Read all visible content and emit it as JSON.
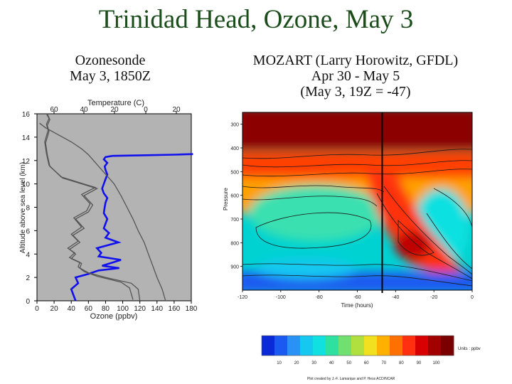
{
  "slide": {
    "title": "Trinidad Head, Ozone, May 3",
    "left_subtitle": [
      "Ozonesonde",
      "May 3, 1850Z"
    ],
    "right_subtitle": [
      "MOZART (Larry Horowitz, GFDL)",
      "Apr 30 - May 5",
      "(May 3, 19Z = -47)"
    ]
  },
  "colors": {
    "ozone_profile": "#1111ee",
    "sonde_panel_bg": "#b3b3b3",
    "trace_gray": "#555555",
    "contour_top": "#8c0000",
    "contour_mid": "#00d2d2"
  },
  "chart_data": [
    {
      "type": "line",
      "ylabel": "Altitude above sea level (km)",
      "ylim": [
        0,
        16
      ],
      "yticks": [
        "0",
        "2",
        "4",
        "6",
        "8",
        "10",
        "12",
        "14",
        "16"
      ],
      "x_top_label": "Temperature (C)",
      "x_top_ticks": [
        "60",
        "40",
        "20",
        "0",
        "20"
      ],
      "x_bottom_label": "Ozone (ppbv)",
      "x_bottom_ticks": [
        "0",
        "20",
        "40",
        "60",
        "80",
        "100",
        "120",
        "140",
        "160",
        "180"
      ],
      "xlim": [
        0,
        180
      ],
      "series": [
        {
          "key": "ozone",
          "x": [
            45,
            42,
            40,
            48,
            45,
            60,
            72,
            96,
            76,
            98,
            72,
            75,
            70,
            95,
            80,
            84,
            78,
            80,
            82,
            78,
            79,
            80,
            82,
            78,
            76,
            78,
            80,
            82,
            80,
            79,
            82,
            78,
            80,
            88,
            122,
            160,
            182
          ],
          "y": [
            0,
            0.6,
            1.0,
            1.5,
            2.0,
            2.3,
            2.6,
            2.8,
            3.0,
            3.5,
            3.8,
            4.1,
            4.5,
            5.0,
            5.4,
            5.8,
            6.2,
            6.6,
            7.0,
            7.5,
            8.0,
            8.4,
            8.8,
            9.2,
            9.6,
            10.0,
            10.4,
            10.8,
            11.2,
            11.5,
            11.8,
            12.1,
            12.3,
            12.4,
            12.45,
            12.5,
            12.55
          ]
        },
        {
          "key": "temperature",
          "x": [
            150,
            146,
            140,
            135,
            130,
            125,
            118,
            112,
            105,
            98,
            90,
            84,
            78,
            72,
            66,
            60,
            52,
            46,
            40,
            30,
            20,
            10,
            3
          ],
          "y": [
            0,
            1,
            2,
            3,
            4,
            5,
            6,
            7,
            8,
            9,
            10,
            10.5,
            11,
            11.5,
            12,
            12.5,
            13,
            13.3,
            13.6,
            14,
            14.4,
            14.8,
            15.2
          ]
        },
        {
          "key": "humidity_a",
          "x": [
            120,
            118,
            110,
            80,
            60,
            50,
            52,
            40,
            45,
            38,
            50,
            42,
            55,
            45,
            60,
            65,
            55,
            70,
            30,
            15,
            12,
            10,
            14,
            12,
            15,
            12
          ],
          "y": [
            0,
            1,
            1.5,
            2,
            2.4,
            2.8,
            3.2,
            3.6,
            4,
            4.4,
            5,
            5.6,
            6.2,
            7,
            7.6,
            8.2,
            9,
            9.6,
            10.5,
            11.5,
            12.5,
            13.5,
            14.5,
            15,
            15.5,
            16
          ]
        },
        {
          "key": "humidity_b",
          "x": [
            112,
            108,
            98,
            70,
            55,
            48,
            50,
            38,
            44,
            36,
            48,
            40,
            52,
            43,
            58,
            62,
            52,
            68,
            28,
            14,
            11,
            9,
            13,
            11,
            14,
            11
          ],
          "y": [
            0.1,
            1.1,
            1.6,
            2.1,
            2.5,
            2.9,
            3.3,
            3.7,
            4.1,
            4.5,
            5.1,
            5.7,
            6.3,
            7.1,
            7.7,
            8.3,
            9.1,
            9.7,
            10.6,
            11.6,
            12.6,
            13.6,
            14.6,
            15.1,
            15.6,
            16
          ]
        }
      ]
    },
    {
      "type": "heatmap",
      "xlabel": "Time (hours)",
      "ylabel": "Pressure",
      "xlim": [
        -120,
        0
      ],
      "xticks": [
        "-120",
        "-100",
        "-80",
        "-60",
        "-40",
        "-20",
        "0"
      ],
      "ylim": [
        1000,
        250
      ],
      "yticks": [
        "300",
        "400",
        "500",
        "600",
        "700",
        "800",
        "900"
      ],
      "marker_time": -47,
      "colorbar": {
        "unit_label": "Units : ppbv",
        "ticks": [
          "10",
          "20",
          "30",
          "40",
          "50",
          "60",
          "70",
          "80",
          "90",
          "100"
        ],
        "colors": [
          "#0a2ad8",
          "#1a5af0",
          "#2a92f5",
          "#16c8f0",
          "#10e0e0",
          "#30e0a0",
          "#70e070",
          "#b0e040",
          "#f0e020",
          "#ffb000",
          "#ff7000",
          "#ff3010",
          "#d80000",
          "#a00000",
          "#7a0000"
        ]
      },
      "credit": "Plot created by J.-F. Lamarque and P. Hess ACD/NCAR"
    }
  ]
}
